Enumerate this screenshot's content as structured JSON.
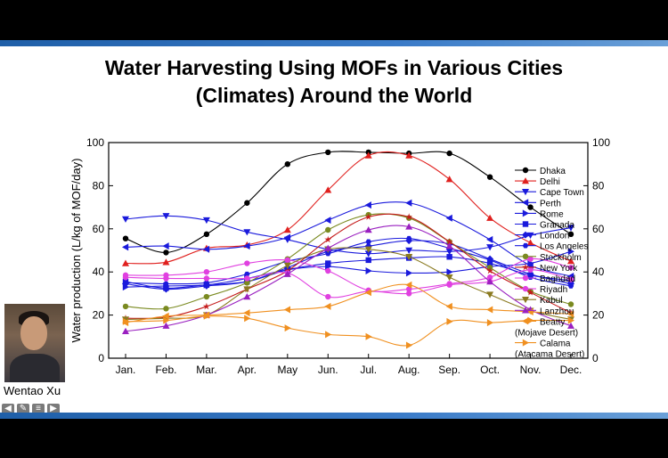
{
  "slide": {
    "title_line1": "Water Harvesting Using MOFs in Various Cities",
    "title_line2": "(Climates)  Around the World",
    "presenter": "Wentao Xu"
  },
  "nav_icons": [
    "back-arrow-icon",
    "pen-icon",
    "menu-icon",
    "forward-arrow-icon"
  ],
  "chart_data": {
    "type": "line",
    "title": "",
    "xlabel": "",
    "ylabel": "Water production (L/kg of MOF/day)",
    "ylim": [
      0,
      100
    ],
    "yticks": [
      0,
      20,
      40,
      60,
      80,
      100
    ],
    "y2ticks": [
      0,
      20,
      40,
      60,
      80,
      100
    ],
    "categories": [
      "Jan.",
      "Feb.",
      "Mar.",
      "Apr.",
      "May",
      "Jun.",
      "Jul.",
      "Aug.",
      "Sep.",
      "Oct.",
      "Nov.",
      "Dec."
    ],
    "series": [
      {
        "name": "Dhaka",
        "color": "#000000",
        "marker": "circle",
        "values": [
          55.5,
          49,
          57.5,
          72,
          90,
          95.5,
          95.5,
          95,
          95,
          84,
          70,
          57.5
        ]
      },
      {
        "name": "Delhi",
        "color": "#e0201e",
        "marker": "triangle-up",
        "values": [
          44,
          44.5,
          51,
          52.5,
          59.5,
          78,
          94,
          94,
          83,
          65,
          53.5,
          45
        ]
      },
      {
        "name": "Cape Town",
        "color": "#1a1adc",
        "marker": "triangle-down",
        "values": [
          64.5,
          66,
          64,
          58.5,
          55,
          50.5,
          48.5,
          50,
          49.5,
          51.5,
          57,
          60.5
        ]
      },
      {
        "name": "Perth",
        "color": "#1a1adc",
        "marker": "triangle-left",
        "values": [
          51.5,
          52,
          50.5,
          52,
          56,
          64,
          71,
          72,
          65,
          55,
          43,
          38
        ]
      },
      {
        "name": "Rome",
        "color": "#1a1adc",
        "marker": "triangle-right",
        "values": [
          33,
          33.5,
          34,
          37,
          41,
          42.5,
          40.5,
          39.5,
          40,
          42.5,
          44,
          49.5
        ]
      },
      {
        "name": "Granada",
        "color": "#1a1adc",
        "marker": "square",
        "values": [
          35.5,
          32.5,
          34,
          35.5,
          41,
          44,
          45.5,
          46.5,
          47,
          44,
          38.5,
          36
        ]
      },
      {
        "name": "London",
        "color": "#1a1adc",
        "marker": "diamond",
        "values": [
          34.5,
          32,
          33.5,
          35.5,
          42,
          49.5,
          52,
          54.5,
          53,
          46,
          39,
          34.5
        ]
      },
      {
        "name": "Los Angeles",
        "color": "#1a1adc",
        "marker": "hexagon",
        "values": [
          35,
          34.5,
          35,
          39,
          45,
          48.5,
          54,
          55.5,
          51,
          45.5,
          37.5,
          33.5
        ]
      },
      {
        "name": "Stockholm",
        "color": "#7a8a20",
        "marker": "circle",
        "values": [
          24,
          23,
          28.5,
          35,
          46,
          59.5,
          66.5,
          65,
          54,
          42,
          31,
          25
        ]
      },
      {
        "name": "New York",
        "color": "#c41a1a",
        "marker": "star",
        "values": [
          18.5,
          19,
          24,
          32,
          40.5,
          55,
          65.5,
          65.5,
          54,
          40.5,
          30.5,
          21
        ]
      },
      {
        "name": "Baghdad",
        "color": "#e040e0",
        "marker": "circle",
        "values": [
          38.5,
          38.5,
          40,
          44,
          45.5,
          40.5,
          31.5,
          32,
          34.5,
          37.5,
          46,
          42
        ]
      },
      {
        "name": "Riyadh",
        "color": "#e040e0",
        "marker": "circle",
        "values": [
          37.5,
          37,
          37,
          37,
          39.5,
          28.5,
          31,
          30,
          34,
          35.5,
          41,
          36.5
        ]
      },
      {
        "name": "Kabul",
        "color": "#8a7a20",
        "marker": "triangle-down",
        "values": [
          18,
          18.5,
          20,
          32,
          43,
          50.5,
          50.5,
          47,
          37.5,
          29.5,
          22,
          18
        ]
      },
      {
        "name": "Lanzhou",
        "color": "#9a20c0",
        "marker": "triangle-up",
        "values": [
          12.5,
          15,
          20,
          28.5,
          39,
          51,
          59.5,
          61,
          52,
          35.5,
          22.5,
          15
        ]
      },
      {
        "name": "Beatty",
        "sub": "(Mojave Desert)",
        "color": "#f09020",
        "marker": "triangle-left",
        "values": [
          16.5,
          19.5,
          20,
          21,
          22.5,
          24,
          30.5,
          34,
          24,
          22.5,
          21.5,
          20.5
        ]
      },
      {
        "name": "Calama",
        "sub": "(Atacama Desert)",
        "color": "#f09020",
        "marker": "triangle-right",
        "values": [
          17,
          17.5,
          19.5,
          18.5,
          14,
          11,
          10,
          6,
          17,
          16.5,
          17.5,
          17.5
        ]
      }
    ]
  }
}
